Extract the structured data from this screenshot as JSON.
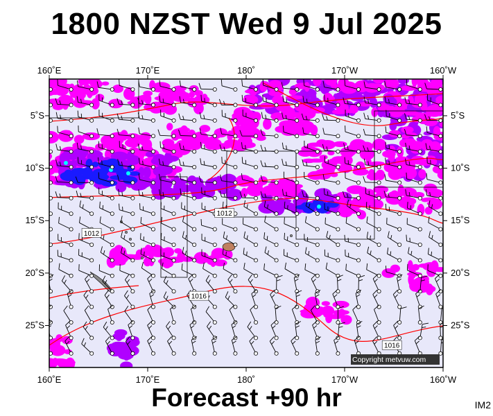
{
  "title": "1800 NZST Wed 9 Jul 2025",
  "forecast_label": "Forecast +90 hr",
  "product_code": "IM2",
  "copyright": "Copyright metvuw.com",
  "axes": {
    "lon_ticks": [
      {
        "lon": 160,
        "label": "160˚E"
      },
      {
        "lon": 170,
        "label": "170˚E"
      },
      {
        "lon": 180,
        "label": "180˚"
      },
      {
        "lon": 190,
        "label": "170˚W"
      },
      {
        "lon": 200,
        "label": "160˚W"
      }
    ],
    "lat_ticks": [
      {
        "lat": -5,
        "label": "5˚S"
      },
      {
        "lat": -10,
        "label": "10˚S"
      },
      {
        "lat": -15,
        "label": "15˚S"
      },
      {
        "lat": -20,
        "label": "20˚S"
      },
      {
        "lat": -25,
        "label": "25˚S"
      }
    ],
    "lon_range": [
      160,
      200
    ],
    "lat_range": [
      -1.5,
      -29
    ]
  },
  "isobars": [
    {
      "value": "1012",
      "label": "1012",
      "lon": 177.8,
      "lat": -14.3
    },
    {
      "value": "1012",
      "label": "1012",
      "lon": 164.3,
      "lat": -16.2
    },
    {
      "value": "1016",
      "label": "1016",
      "lon": 175.2,
      "lat": -22.2
    },
    {
      "value": "1016",
      "label": "1016",
      "lon": 194.8,
      "lat": -26.9
    }
  ],
  "colors": {
    "background": "#e8e8fa",
    "rain_light": "#ff00ff",
    "rain_medium": "#b000ff",
    "rain_heavy": "#1a1aff",
    "rain_extreme": "#00ffff",
    "isobar": "#ff0000",
    "land": "#8a8a8a",
    "border": "#000000"
  }
}
